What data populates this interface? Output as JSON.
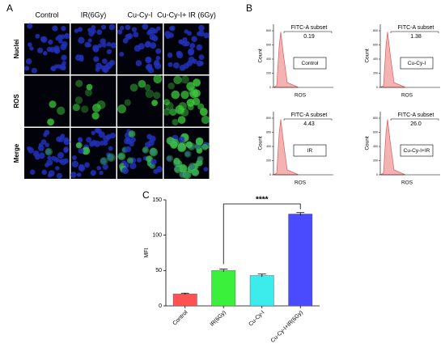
{
  "panel_a": {
    "label": "A",
    "columns": [
      "Control",
      "IR(6Gy)",
      "Cu-Cy-I",
      "Cu-Cy-I+ IR (6Gy)"
    ],
    "rows": [
      "Nuclei",
      "ROS",
      "Merge"
    ]
  },
  "panel_b": {
    "label": "B",
    "gate": "FITC-A subset",
    "xlabel": "ROS",
    "ylabel": "Count",
    "count_ticks": [
      0,
      200,
      400,
      600,
      800
    ],
    "plots": [
      {
        "sample": "Control",
        "percent": "0.19"
      },
      {
        "sample": "Cu-Cy-I",
        "percent": "1.38"
      },
      {
        "sample": "IR",
        "percent": "4.43"
      },
      {
        "sample": "Cu-Cy-I+IR",
        "percent": "26.0"
      }
    ]
  },
  "chart_data": {
    "type": "bar",
    "label": "C",
    "ylabel": "MFI",
    "categories": [
      "Control",
      "IR(6Gy)",
      "Cu-Cy-I",
      "Cu-Cy-I+IR(6Gy)"
    ],
    "values": [
      17,
      50,
      43,
      130
    ],
    "errors": [
      1,
      2,
      2,
      2
    ],
    "colors": [
      "#ff5252",
      "#3af03a",
      "#3cecec",
      "#4a4aff"
    ],
    "ylim": [
      0,
      150
    ],
    "yticks": [
      0,
      50,
      100,
      150
    ],
    "significance": "****"
  }
}
